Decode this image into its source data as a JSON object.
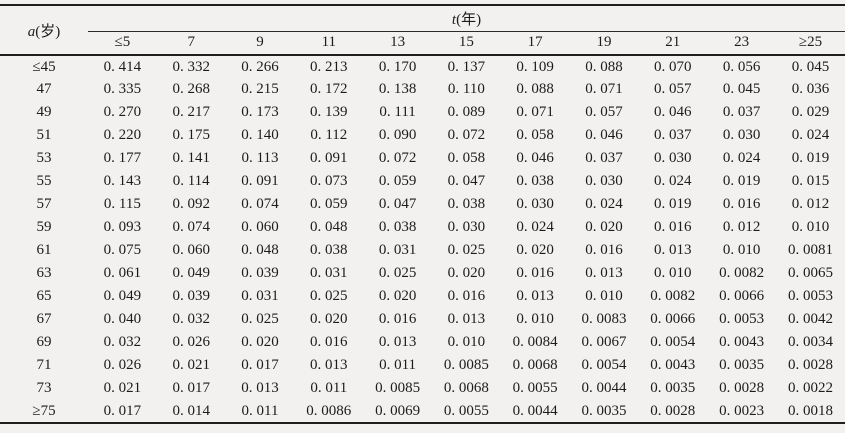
{
  "page": {
    "background_color": "#f2f1ef",
    "text_color": "#1c1c1c",
    "rule_color": "#1f1f1f"
  },
  "table": {
    "corner": {
      "variable": "a",
      "unit": "(岁)"
    },
    "span": {
      "variable": "t",
      "unit": "(年)"
    },
    "col_headers": [
      "≤5",
      "7",
      "9",
      "11",
      "13",
      "15",
      "17",
      "19",
      "21",
      "23",
      "≥25"
    ],
    "rows": [
      {
        "label": "≤45",
        "values": [
          "0. 414",
          "0. 332",
          "0. 266",
          "0. 213",
          "0. 170",
          "0. 137",
          "0. 109",
          "0. 088",
          "0. 070",
          "0. 056",
          "0. 045"
        ]
      },
      {
        "label": "47",
        "values": [
          "0. 335",
          "0. 268",
          "0. 215",
          "0. 172",
          "0. 138",
          "0. 110",
          "0. 088",
          "0. 071",
          "0. 057",
          "0. 045",
          "0. 036"
        ]
      },
      {
        "label": "49",
        "values": [
          "0. 270",
          "0. 217",
          "0. 173",
          "0. 139",
          "0. 111",
          "0. 089",
          "0. 071",
          "0. 057",
          "0. 046",
          "0. 037",
          "0. 029"
        ]
      },
      {
        "label": "51",
        "values": [
          "0. 220",
          "0. 175",
          "0. 140",
          "0. 112",
          "0. 090",
          "0. 072",
          "0. 058",
          "0. 046",
          "0. 037",
          "0. 030",
          "0. 024"
        ]
      },
      {
        "label": "53",
        "values": [
          "0. 177",
          "0. 141",
          "0. 113",
          "0. 091",
          "0. 072",
          "0. 058",
          "0. 046",
          "0. 037",
          "0. 030",
          "0. 024",
          "0. 019"
        ]
      },
      {
        "label": "55",
        "values": [
          "0. 143",
          "0. 114",
          "0. 091",
          "0. 073",
          "0. 059",
          "0. 047",
          "0. 038",
          "0. 030",
          "0. 024",
          "0. 019",
          "0. 015"
        ]
      },
      {
        "label": "57",
        "values": [
          "0. 115",
          "0. 092",
          "0. 074",
          "0. 059",
          "0. 047",
          "0. 038",
          "0. 030",
          "0. 024",
          "0. 019",
          "0. 016",
          "0. 012"
        ]
      },
      {
        "label": "59",
        "values": [
          "0. 093",
          "0. 074",
          "0. 060",
          "0. 048",
          "0. 038",
          "0. 030",
          "0. 024",
          "0. 020",
          "0. 016",
          "0. 012",
          "0. 010"
        ]
      },
      {
        "label": "61",
        "values": [
          "0. 075",
          "0. 060",
          "0. 048",
          "0. 038",
          "0. 031",
          "0. 025",
          "0. 020",
          "0. 016",
          "0. 013",
          "0. 010",
          "0. 0081"
        ]
      },
      {
        "label": "63",
        "values": [
          "0. 061",
          "0. 049",
          "0. 039",
          "0. 031",
          "0. 025",
          "0. 020",
          "0. 016",
          "0. 013",
          "0. 010",
          "0. 0082",
          "0. 0065"
        ]
      },
      {
        "label": "65",
        "values": [
          "0. 049",
          "0. 039",
          "0. 031",
          "0. 025",
          "0. 020",
          "0. 016",
          "0. 013",
          "0. 010",
          "0. 0082",
          "0. 0066",
          "0. 0053"
        ]
      },
      {
        "label": "67",
        "values": [
          "0. 040",
          "0. 032",
          "0. 025",
          "0. 020",
          "0. 016",
          "0. 013",
          "0. 010",
          "0. 0083",
          "0. 0066",
          "0. 0053",
          "0. 0042"
        ]
      },
      {
        "label": "69",
        "values": [
          "0. 032",
          "0. 026",
          "0. 020",
          "0. 016",
          "0. 013",
          "0. 010",
          "0. 0084",
          "0. 0067",
          "0. 0054",
          "0. 0043",
          "0. 0034"
        ]
      },
      {
        "label": "71",
        "values": [
          "0. 026",
          "0. 021",
          "0. 017",
          "0. 013",
          "0. 011",
          "0. 0085",
          "0. 0068",
          "0. 0054",
          "0. 0043",
          "0. 0035",
          "0. 0028"
        ]
      },
      {
        "label": "73",
        "values": [
          "0. 021",
          "0. 017",
          "0. 013",
          "0. 011",
          "0. 0085",
          "0. 0068",
          "0. 0055",
          "0. 0044",
          "0. 0035",
          "0. 0028",
          "0. 0022"
        ]
      },
      {
        "label": "≥75",
        "values": [
          "0. 017",
          "0. 014",
          "0. 011",
          "0. 0086",
          "0. 0069",
          "0. 0055",
          "0. 0044",
          "0. 0035",
          "0. 0028",
          "0. 0023",
          "0. 0018"
        ]
      }
    ]
  }
}
